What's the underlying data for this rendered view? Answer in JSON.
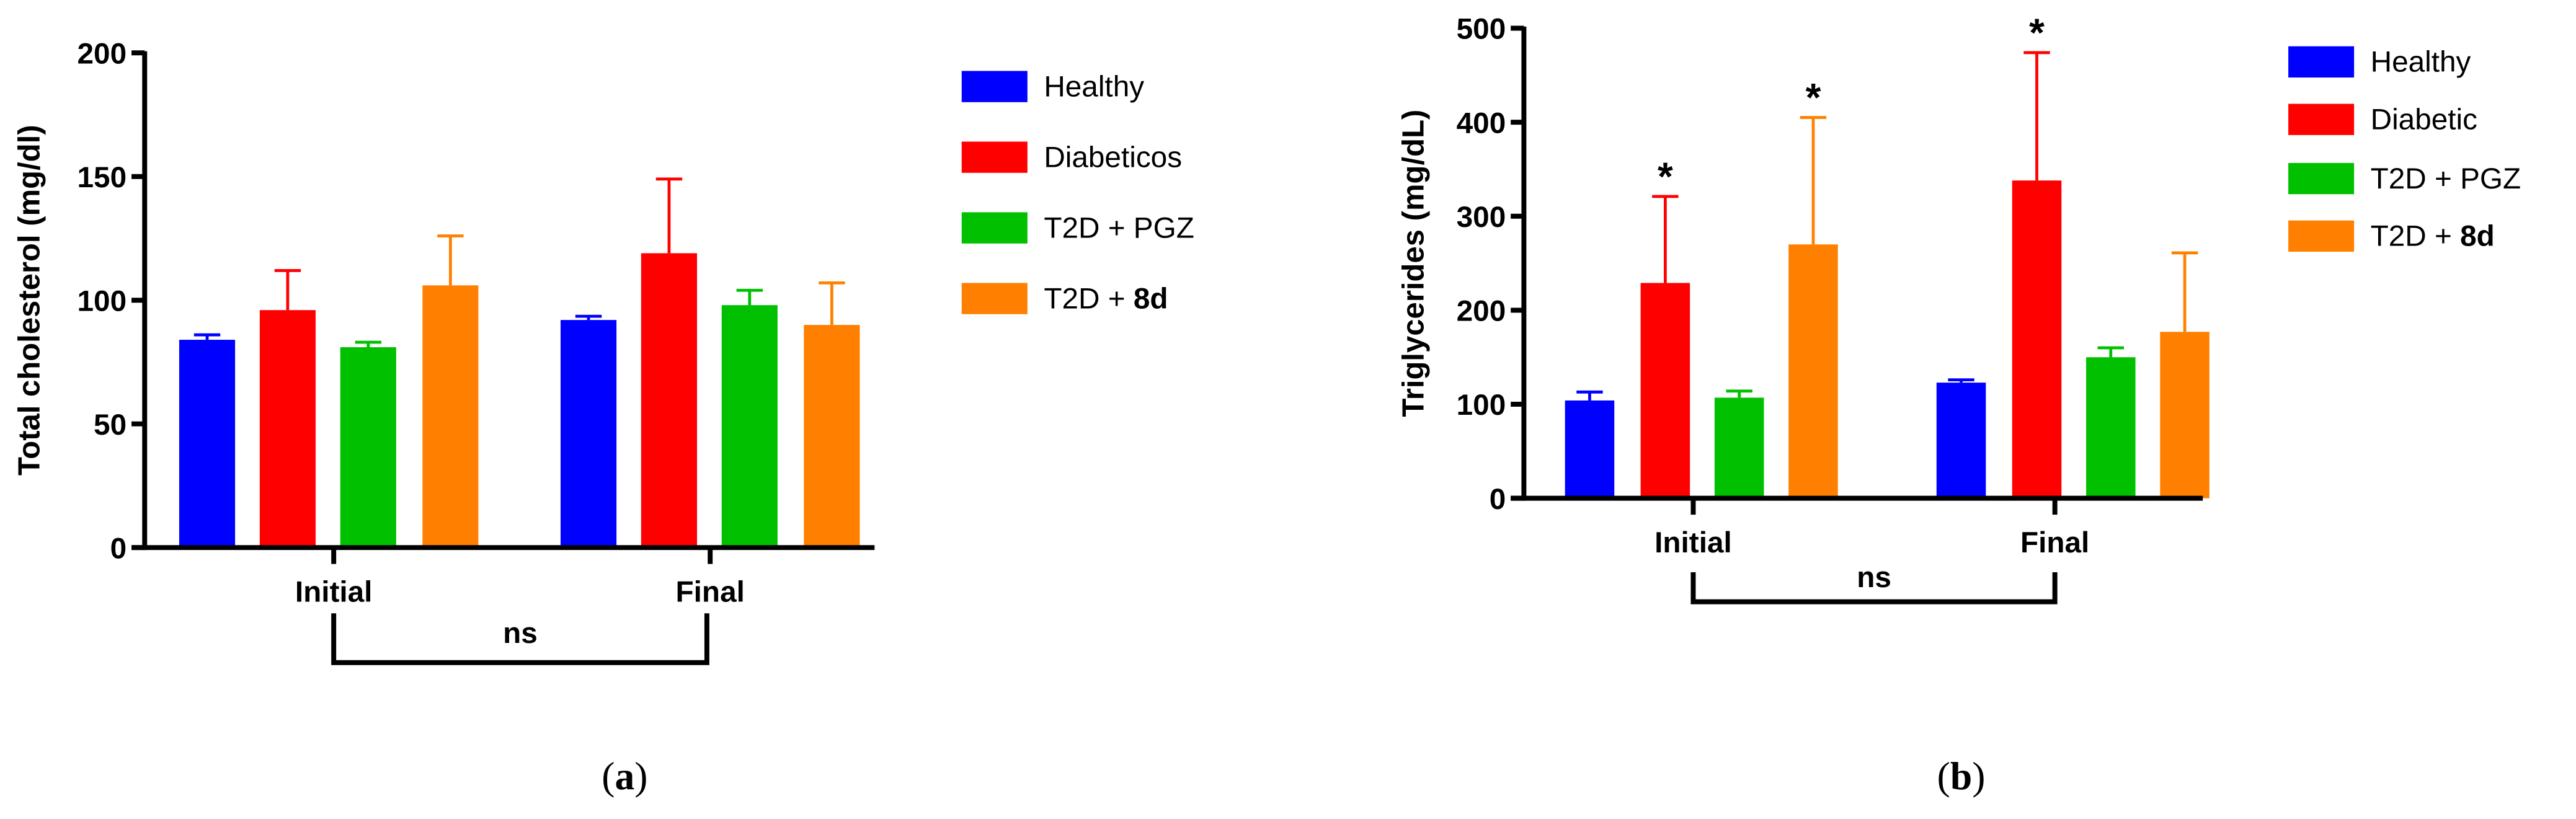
{
  "chart_data": [
    {
      "type": "bar",
      "panel_label": "a",
      "title": "",
      "xlabel": "",
      "ylabel": "Total cholesterol (mg/dl)",
      "ylim": [
        0,
        200
      ],
      "yticks": [
        0,
        50,
        100,
        150,
        200
      ],
      "categories": [
        "Initial",
        "Final"
      ],
      "series": [
        {
          "name": "Healthy",
          "name_bold": "",
          "color": "#0000ff",
          "values": [
            84,
            92
          ],
          "errors": [
            2,
            1.5
          ],
          "stars": [
            "",
            ""
          ]
        },
        {
          "name": "Diabeticos",
          "name_bold": "",
          "color": "#ff0000",
          "values": [
            96,
            119
          ],
          "errors": [
            16,
            30
          ],
          "stars": [
            "",
            ""
          ]
        },
        {
          "name": "T2D + PGZ",
          "name_bold": "",
          "color": "#00c000",
          "values": [
            81,
            98
          ],
          "errors": [
            2,
            6
          ],
          "stars": [
            "",
            ""
          ]
        },
        {
          "name": "T2D + ",
          "name_bold": "8d",
          "color": "#ff8000",
          "values": [
            106,
            90
          ],
          "errors": [
            20,
            17
          ],
          "stars": [
            "",
            ""
          ]
        }
      ],
      "bracket_label": "ns",
      "legend_position": "right"
    },
    {
      "type": "bar",
      "panel_label": "b",
      "title": "",
      "xlabel": "",
      "ylabel": "Triglycerides (mg/dL)",
      "ylim": [
        0,
        500
      ],
      "yticks": [
        0,
        100,
        200,
        300,
        400,
        500
      ],
      "categories": [
        "Initial",
        "Final"
      ],
      "series": [
        {
          "name": "Healthy",
          "name_bold": "",
          "color": "#0000ff",
          "values": [
            104,
            123
          ],
          "errors": [
            9,
            3
          ],
          "stars": [
            "",
            ""
          ]
        },
        {
          "name": "Diabetic",
          "name_bold": "",
          "color": "#ff0000",
          "values": [
            229,
            338
          ],
          "errors": [
            92,
            136
          ],
          "stars": [
            "*",
            "*"
          ]
        },
        {
          "name": "T2D + PGZ",
          "name_bold": "",
          "color": "#00c000",
          "values": [
            107,
            150
          ],
          "errors": [
            7,
            10
          ],
          "stars": [
            "",
            ""
          ]
        },
        {
          "name": "T2D + ",
          "name_bold": "8d",
          "color": "#ff8000",
          "values": [
            270,
            177
          ],
          "errors": [
            135,
            84
          ],
          "stars": [
            "*",
            ""
          ]
        }
      ],
      "bracket_label": "ns",
      "legend_position": "right"
    }
  ]
}
